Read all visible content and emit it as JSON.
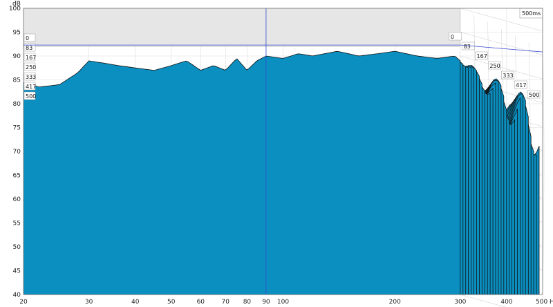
{
  "chart_data": {
    "type": "area",
    "plot_style": "waterfall",
    "xlabel": "Hz",
    "ylabel": "dB",
    "x_scale": "log",
    "xlim": [
      20,
      500
    ],
    "ylim": [
      40,
      100
    ],
    "x_ticks": [
      20,
      30,
      40,
      50,
      60,
      70,
      80,
      90,
      100,
      200,
      300,
      400,
      500
    ],
    "x_tick_labels": [
      "20",
      "30",
      "40",
      "50",
      "60",
      "70",
      "80",
      "90",
      "100",
      "200",
      "300",
      "400",
      "500 Hz"
    ],
    "y_ticks": [
      40,
      45,
      50,
      55,
      60,
      65,
      70,
      75,
      80,
      85,
      90,
      95,
      100
    ],
    "y_tick_labels": [
      "40",
      "45",
      "50",
      "55",
      "60",
      "65",
      "70",
      "75",
      "80",
      "85",
      "90",
      "95",
      "100"
    ],
    "time_window_label": "500ms",
    "time_slices_ms": [
      0,
      83,
      167,
      250,
      333,
      417,
      500
    ],
    "time_slice_labels": [
      "0",
      "83",
      "167",
      "250",
      "333",
      "417",
      "500"
    ],
    "cursor": {
      "x_hz": 90,
      "y_db": 92.3,
      "time_ms": 83
    },
    "grid": true,
    "fill_color": "#0b8fc0",
    "outline_color": "#111111",
    "cursor_color": "#3344cc",
    "first_slice": {
      "x": [
        20,
        22,
        25,
        28,
        30,
        33,
        36,
        40,
        45,
        50,
        55,
        60,
        65,
        70,
        75,
        80,
        85,
        90,
        100,
        110,
        120,
        140,
        160,
        180,
        200,
        230,
        260,
        290,
        300
      ],
      "y": [
        84.5,
        83.5,
        84,
        86.5,
        89,
        88.5,
        88,
        87.5,
        87,
        88,
        89,
        87,
        88,
        87,
        89.5,
        87,
        89,
        90,
        89.5,
        90.5,
        90,
        91,
        90,
        90.5,
        91,
        90,
        89.5,
        90,
        89
      ]
    }
  }
}
